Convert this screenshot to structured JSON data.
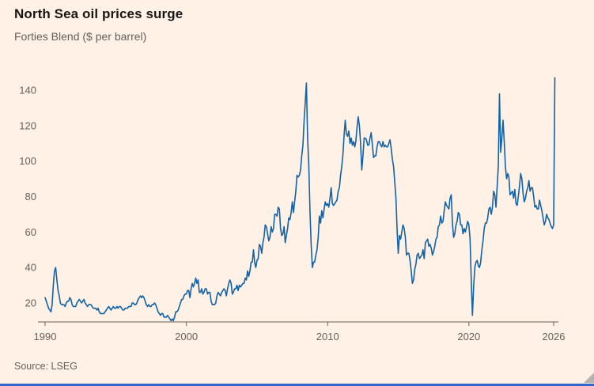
{
  "header": {
    "title": "North Sea oil prices surge",
    "subtitle": "Forties Blend ($ per barrel)"
  },
  "footer": {
    "source": "Source: LSEG"
  },
  "colors": {
    "background": "#FFF1E5",
    "line": "#1262a8",
    "title_text": "#191715",
    "muted_text": "#66605C",
    "axis": "#66605C",
    "bottom_bar": "#3366cc"
  },
  "chart_data": {
    "type": "line",
    "title": "North Sea oil prices surge",
    "subtitle": "Forties Blend ($ per barrel)",
    "source": "Source: LSEG",
    "xlabel": "",
    "ylabel": "$ per barrel",
    "grid": false,
    "legend_position": "none",
    "x_start_year": 1990,
    "points_per_year": 12,
    "x_ticks": [
      1990,
      2000,
      2010,
      2020,
      2026
    ],
    "y_ticks": [
      20,
      40,
      60,
      80,
      100,
      120,
      140
    ],
    "ylim": [
      9,
      150
    ],
    "xlim": [
      1990,
      2026.2
    ],
    "values": [
      23,
      21,
      19,
      17,
      16,
      15,
      19,
      30,
      38,
      40,
      33,
      27,
      24,
      20,
      19,
      19,
      19,
      18,
      20,
      21,
      21,
      23,
      22,
      19,
      18,
      18,
      18,
      20,
      21,
      22,
      21,
      20,
      21,
      22,
      20,
      19,
      18,
      19,
      19,
      19,
      18,
      17,
      17,
      17,
      16,
      17,
      15,
      14,
      14,
      14,
      14,
      15,
      16,
      17,
      18,
      17,
      16,
      17,
      18,
      17,
      17,
      18,
      17,
      18,
      18,
      17,
      16,
      16,
      17,
      17,
      17,
      18,
      18,
      18,
      20,
      20,
      19,
      19,
      20,
      22,
      23,
      24,
      23,
      24,
      23,
      21,
      19,
      18,
      19,
      18,
      18,
      19,
      19,
      20,
      19,
      17,
      15,
      14,
      13,
      14,
      14,
      12,
      12,
      12,
      13,
      12,
      11,
      10,
      11,
      10,
      12,
      15,
      15,
      16,
      18,
      20,
      22,
      22,
      24,
      25,
      25,
      27,
      27,
      23,
      28,
      31,
      29,
      31,
      34,
      31,
      33,
      26,
      26,
      28,
      25,
      26,
      28,
      28,
      25,
      26,
      26,
      21,
      19,
      19,
      19,
      20,
      24,
      26,
      25,
      24,
      26,
      27,
      28,
      27,
      24,
      28,
      31,
      33,
      31,
      25,
      26,
      28,
      28,
      30,
      27,
      30,
      29,
      30,
      31,
      31,
      34,
      33,
      38,
      35,
      38,
      43,
      43,
      50,
      43,
      40,
      44,
      45,
      53,
      52,
      48,
      54,
      57,
      64,
      63,
      59,
      55,
      57,
      63,
      60,
      62,
      70,
      70,
      69,
      74,
      73,
      62,
      58,
      59,
      63,
      54,
      58,
      62,
      68,
      67,
      71,
      77,
      71,
      77,
      83,
      92,
      91,
      92,
      95,
      103,
      109,
      123,
      133,
      144,
      113,
      98,
      72,
      53,
      40,
      43,
      43,
      47,
      50,
      57,
      69,
      65,
      72,
      68,
      73,
      77,
      75,
      76,
      74,
      79,
      85,
      76,
      75,
      76,
      77,
      78,
      83,
      85,
      92,
      97,
      104,
      115,
      123,
      115,
      114,
      117,
      110,
      113,
      109,
      111,
      108,
      111,
      119,
      125,
      120,
      110,
      95,
      103,
      113,
      113,
      112,
      109,
      109,
      113,
      116,
      109,
      102,
      103,
      103,
      108,
      111,
      111,
      109,
      108,
      111,
      108,
      109,
      108,
      108,
      110,
      112,
      107,
      101,
      97,
      88,
      79,
      62,
      48,
      58,
      56,
      60,
      64,
      62,
      57,
      47,
      48,
      48,
      44,
      38,
      31,
      33,
      39,
      42,
      47,
      48,
      45,
      46,
      47,
      50,
      45,
      54,
      55,
      56,
      52,
      53,
      51,
      47,
      49,
      52,
      56,
      57,
      63,
      64,
      69,
      65,
      66,
      72,
      77,
      75,
      74,
      73,
      79,
      81,
      65,
      57,
      59,
      64,
      66,
      71,
      70,
      64,
      64,
      59,
      62,
      60,
      63,
      66,
      64,
      56,
      33,
      13,
      29,
      40,
      43,
      44,
      41,
      40,
      43,
      50,
      55,
      62,
      65,
      65,
      68,
      73,
      74,
      70,
      74,
      83,
      81,
      74,
      86,
      97,
      138,
      105,
      113,
      123,
      111,
      97,
      90,
      93,
      91,
      81,
      82,
      83,
      79,
      84,
      76,
      75,
      80,
      86,
      93,
      90,
      82,
      77,
      79,
      83,
      85,
      89,
      83,
      85,
      85,
      80,
      74,
      75,
      73,
      73,
      78,
      75,
      72,
      68,
      64,
      66,
      70,
      68,
      67,
      65,
      63,
      62,
      64,
      147
    ]
  }
}
